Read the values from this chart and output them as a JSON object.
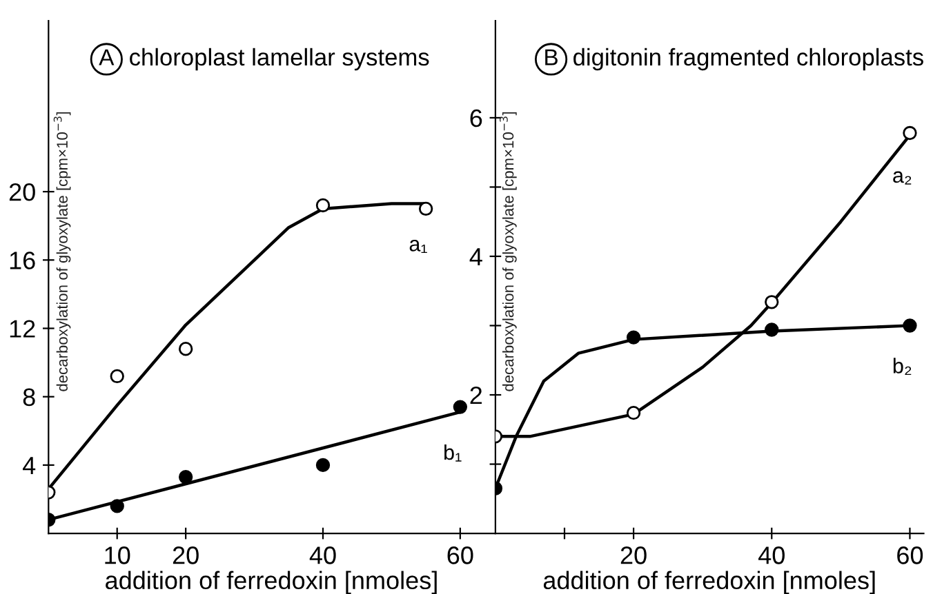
{
  "chart_data": [
    {
      "type": "scatter",
      "title": "A chloroplast lamellar systems",
      "xlabel": "addition of ferredoxin [nmoles]",
      "ylabel": "decarboxylation of glyoxylate [cpm×10$^{−3}$]",
      "xlim": [
        0,
        65
      ],
      "ylim": [
        0,
        30
      ],
      "xticks": [
        10,
        20,
        40,
        60
      ],
      "yticks": [
        4,
        8,
        12,
        16,
        20
      ],
      "grid": false,
      "series": [
        {
          "type": "scatter",
          "color": "#ffffff",
          "marker": "circle",
          "x": [
            0,
            10,
            20,
            40,
            55
          ],
          "values": [
            2.4,
            9.2,
            10.8,
            19.2,
            19.0
          ]
        },
        {
          "type": "scatter",
          "color": "#000000",
          "marker": "circle",
          "x": [
            0,
            10,
            20,
            40,
            60
          ],
          "values": [
            0.8,
            1.6,
            3.3,
            4.0,
            7.4
          ]
        },
        {
          "type": "line",
          "color": "#000000",
          "marker": "none",
          "x": [
            0,
            10,
            20,
            30,
            35,
            40,
            50,
            55
          ],
          "values": [
            2.6,
            7.5,
            12.2,
            16.0,
            17.9,
            19.0,
            19.3,
            19.3
          ]
        },
        {
          "type": "line",
          "color": "#000000",
          "marker": "none",
          "x": [
            0,
            60
          ],
          "values": [
            0.8,
            7.1
          ]
        }
      ],
      "annotations": [
        "a₁",
        "b₁"
      ]
    },
    {
      "type": "scatter",
      "title": "B digitonin fragmented chloroplasts",
      "xlabel": "addition of ferredoxin [nmoles]",
      "ylabel": "decarboxylation of glyoxylate [cpm×10$^{−3}$]",
      "xlim": [
        0,
        62
      ],
      "ylim": [
        0,
        7.4
      ],
      "xticks": [
        {
          "value": 10,
          "label": null
        },
        20,
        40,
        60
      ],
      "yticks": [
        {
          "value": 1,
          "label": null
        },
        2,
        {
          "value": 3,
          "label": null
        },
        4,
        {
          "value": 5,
          "label": null
        },
        6
      ],
      "grid": false,
      "series": [
        {
          "type": "scatter",
          "color": "#ffffff",
          "marker": "circle",
          "x": [
            0,
            20,
            40,
            60
          ],
          "values": [
            1.4,
            1.74,
            3.34,
            5.78
          ]
        },
        {
          "type": "scatter",
          "color": "#000000",
          "marker": "circle",
          "x": [
            0,
            20,
            40,
            60
          ],
          "values": [
            0.65,
            2.83,
            2.94,
            3.0
          ]
        },
        {
          "type": "line",
          "color": "#000000",
          "marker": "none",
          "x": [
            0,
            5,
            20,
            30,
            37,
            40,
            50,
            60
          ],
          "values": [
            1.4,
            1.4,
            1.72,
            2.4,
            3.0,
            3.33,
            4.5,
            5.75
          ]
        },
        {
          "type": "line",
          "color": "#000000",
          "marker": "none",
          "x": [
            0,
            3,
            7,
            12,
            20,
            40,
            60
          ],
          "values": [
            0.65,
            1.4,
            2.2,
            2.6,
            2.8,
            2.92,
            3.0
          ]
        }
      ],
      "annotations": [
        "a₂",
        "b₂"
      ]
    }
  ]
}
